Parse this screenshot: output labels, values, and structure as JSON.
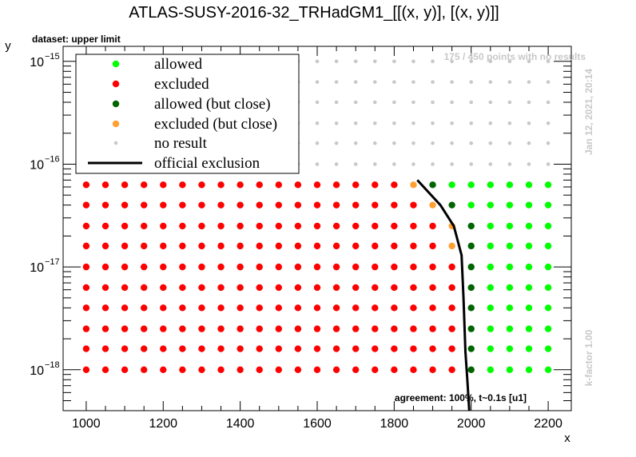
{
  "chart_data": {
    "type": "scatter",
    "title": "ATLAS-SUSY-2016-32_TRHadGM1_[[(x, y)], [(x, y)]]",
    "xlabel": "x",
    "ylabel": "y",
    "x_scale": "linear",
    "y_scale": "log",
    "xlim": [
      940,
      2260
    ],
    "ylim": [
      4e-19,
      1.4e-15
    ],
    "x_ticks": [
      1000,
      1200,
      1400,
      1600,
      1800,
      2000,
      2200
    ],
    "y_ticks": [
      1e-18,
      1e-17,
      1e-16,
      1e-15
    ],
    "y_tick_labels": [
      {
        "base": "10",
        "exp": "−18"
      },
      {
        "base": "10",
        "exp": "−17"
      },
      {
        "base": "10",
        "exp": "−16"
      },
      {
        "base": "10",
        "exp": "−15"
      }
    ],
    "legend_position": "top-left",
    "grid_x": [
      1000,
      1050,
      1100,
      1150,
      1200,
      1250,
      1300,
      1350,
      1400,
      1450,
      1500,
      1550,
      1600,
      1650,
      1700,
      1750,
      1800,
      1850,
      1900,
      1950,
      2000,
      2050,
      2100,
      2150,
      2200
    ],
    "grid_y_computed": [
      1e-18,
      1.6e-18,
      2.5e-18,
      4e-18,
      6.3e-18,
      1e-17,
      1.6e-17,
      2.5e-17,
      4e-17,
      6.3e-17
    ],
    "grid_y_noresult": [
      1e-16,
      1.6e-16,
      2.5e-16,
      4e-16,
      6.3e-16,
      1e-15
    ],
    "series": [
      {
        "name": "allowed",
        "color": "#00ff00"
      },
      {
        "name": "excluded",
        "color": "#ff0000"
      },
      {
        "name": "allowed (but close)",
        "color": "#006400"
      },
      {
        "name": "excluded (but close)",
        "color": "#ffa033"
      },
      {
        "name": "no result",
        "color": "#c8c8c8"
      },
      {
        "name": "official exclusion",
        "color": "#000000"
      }
    ],
    "status_by_row": [
      {
        "y": 1e-18,
        "excluded_max_x": 1950,
        "allowed_close": [
          2000
        ],
        "excluded_close": []
      },
      {
        "y": 1.6e-18,
        "excluded_max_x": 1950,
        "allowed_close": [
          2000
        ],
        "excluded_close": []
      },
      {
        "y": 2.5e-18,
        "excluded_max_x": 1950,
        "allowed_close": [
          2000
        ],
        "excluded_close": []
      },
      {
        "y": 4e-18,
        "excluded_max_x": 1950,
        "allowed_close": [
          2000
        ],
        "excluded_close": []
      },
      {
        "y": 6.3e-18,
        "excluded_max_x": 1950,
        "allowed_close": [
          2000
        ],
        "excluded_close": []
      },
      {
        "y": 1e-17,
        "excluded_max_x": 1950,
        "allowed_close": [
          2000
        ],
        "excluded_close": []
      },
      {
        "y": 1.6e-17,
        "excluded_max_x": 1900,
        "allowed_close": [
          2000
        ],
        "excluded_close": [
          1950
        ]
      },
      {
        "y": 2.5e-17,
        "excluded_max_x": 1900,
        "allowed_close": [
          2000
        ],
        "excluded_close": [
          1950
        ]
      },
      {
        "y": 4e-17,
        "excluded_max_x": 1850,
        "allowed_close": [
          1950
        ],
        "excluded_close": [
          1900
        ]
      },
      {
        "y": 6.3e-17,
        "excluded_max_x": 1800,
        "allowed_close": [
          1900
        ],
        "excluded_close": [
          1850
        ]
      }
    ],
    "official_exclusion": [
      {
        "x": 1860,
        "y": 7e-17
      },
      {
        "x": 1920,
        "y": 4e-17
      },
      {
        "x": 1955,
        "y": 2.5e-17
      },
      {
        "x": 1975,
        "y": 1.3e-17
      },
      {
        "x": 1980,
        "y": 5e-18
      },
      {
        "x": 1985,
        "y": 1.5e-18
      },
      {
        "x": 1990,
        "y": 8e-19
      },
      {
        "x": 1995,
        "y": 4e-19
      }
    ]
  },
  "annotations": {
    "dataset": "dataset: upper limit",
    "no_results": "175 / 450 points with no results",
    "timestamp": "Jan 12, 2021, 20:14",
    "kfactor": "k-factor 1.00",
    "agreement": "agreement: 100%, t~0.1s [u1]"
  }
}
